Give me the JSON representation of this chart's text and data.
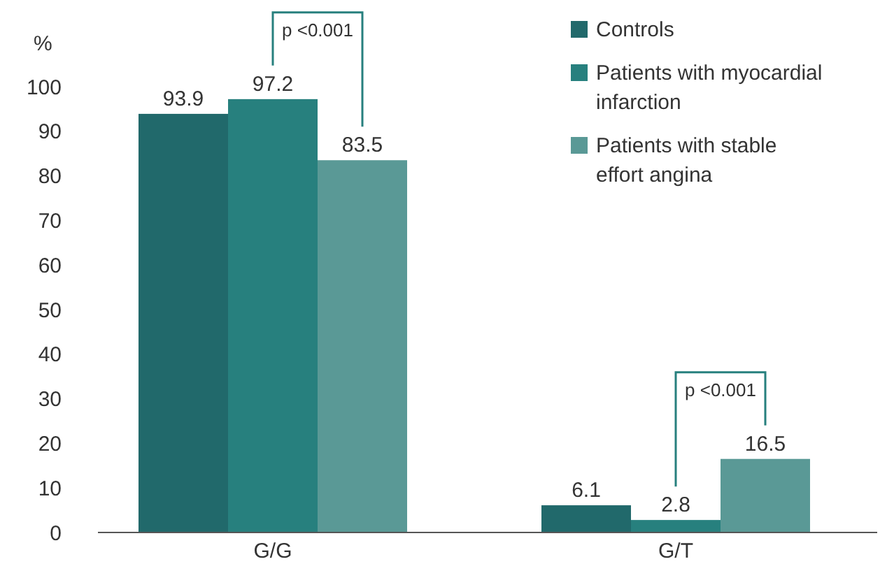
{
  "chart_data": {
    "type": "bar",
    "ylabel": "%",
    "categories": [
      "G/G",
      "G/T"
    ],
    "series": [
      {
        "name": "Controls",
        "color": "#21696b",
        "values": [
          93.9,
          6.1
        ]
      },
      {
        "name": "Patients with myocardial infarction",
        "color": "#27807e",
        "values": [
          97.2,
          2.8
        ]
      },
      {
        "name": "Patients with stable effort angina",
        "color": "#5a9996",
        "values": [
          83.5,
          16.5
        ]
      }
    ],
    "ylim": [
      0,
      100
    ],
    "yticks": [
      0,
      10,
      20,
      30,
      40,
      50,
      60,
      70,
      80,
      90,
      100
    ],
    "data_labels": true,
    "legend": "top right",
    "grid": false,
    "annotations": [
      "p <0.001",
      "p <0.001"
    ]
  }
}
